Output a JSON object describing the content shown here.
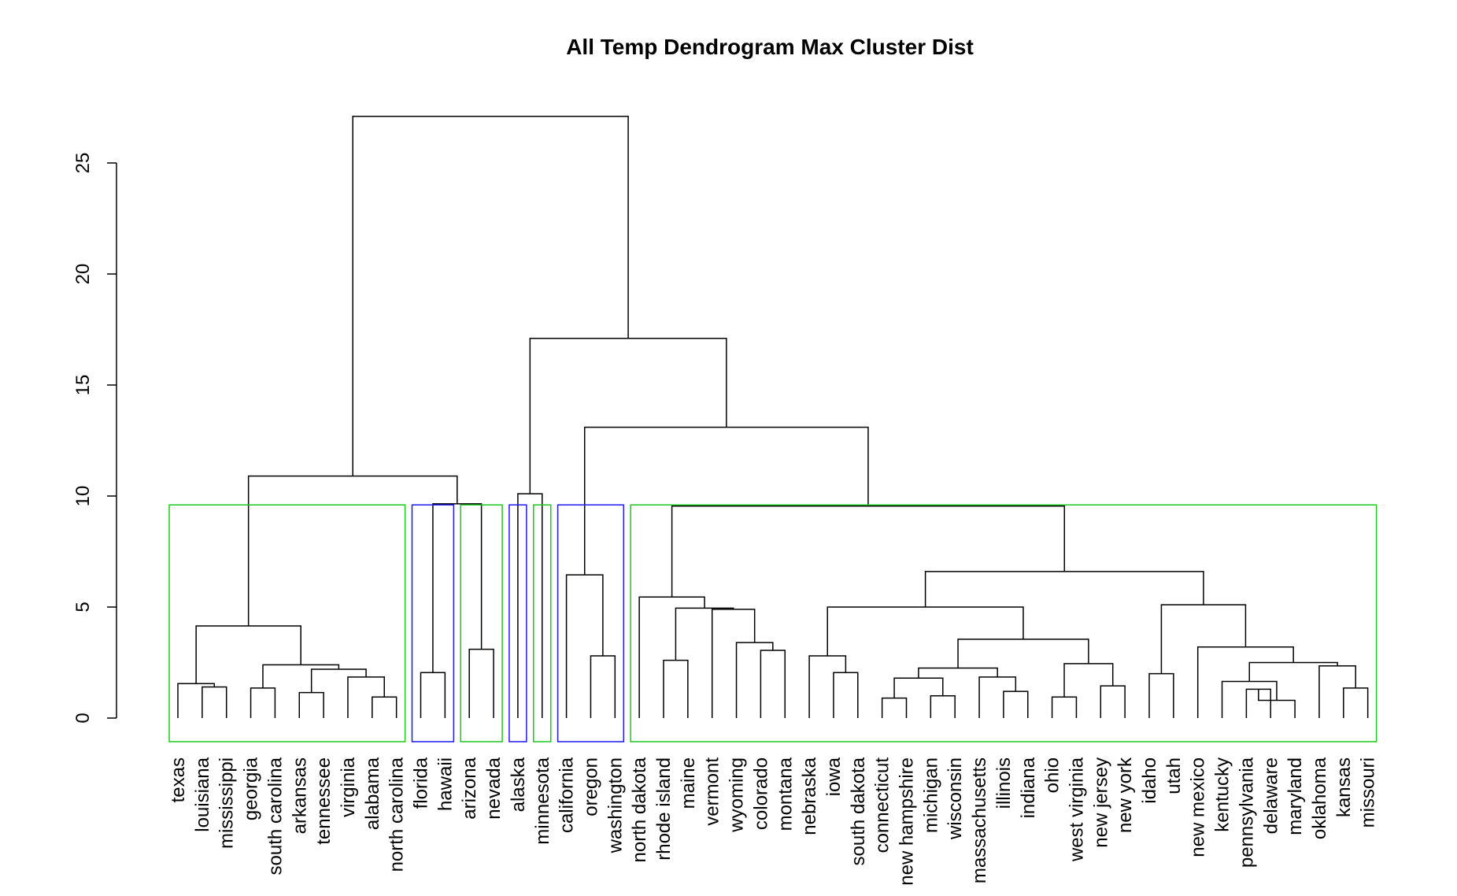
{
  "chart_data": {
    "type": "dendrogram",
    "title": "All Temp Dendrogram Max Cluster Dist",
    "xlabel": "",
    "ylabel": "",
    "ylim": [
      -1,
      27.2
    ],
    "y_ticks": [
      0,
      5,
      10,
      15,
      20,
      25
    ],
    "y_tick_labels": [
      "0",
      "5",
      "10",
      "15",
      "20",
      "25"
    ],
    "cut_height": 9.6,
    "leaves": [
      "texas",
      "louisiana",
      "mississippi",
      "georgia",
      "south carolina",
      "arkansas",
      "tennessee",
      "virginia",
      "alabama",
      "north carolina",
      "florida",
      "hawaii",
      "arizona",
      "nevada",
      "alaska",
      "minnesota",
      "california",
      "oregon",
      "washington",
      "north dakota",
      "rhode island",
      "maine",
      "vermont",
      "wyoming",
      "colorado",
      "montana",
      "nebraska",
      "iowa",
      "south dakota",
      "connecticut",
      "new hampshire",
      "michigan",
      "wisconsin",
      "massachusetts",
      "illinois",
      "indiana",
      "ohio",
      "west virginia",
      "new jersey",
      "new york",
      "idaho",
      "utah",
      "new mexico",
      "kentucky",
      "pennsylvania",
      "delaware",
      "maryland",
      "oklahoma",
      "kansas",
      "missouri"
    ],
    "merges": [
      {
        "left": "louisiana",
        "right": "mississippi",
        "height": 1.4
      },
      {
        "left": "texas",
        "right": "louisiana+mississippi",
        "height": 1.55
      },
      {
        "left": "georgia",
        "right": "south carolina",
        "height": 1.35
      },
      {
        "left": "arkansas",
        "right": "tennessee",
        "height": 1.15
      },
      {
        "left": "alabama",
        "right": "north carolina",
        "height": 0.95
      },
      {
        "left": "virginia",
        "right": "alabama+north carolina",
        "height": 1.85
      },
      {
        "left": "arkansas+tennessee",
        "right": "virginia+alabama+north carolina",
        "height": 2.2
      },
      {
        "left": "georgia+south carolina",
        "right": "arkansas..north carolina",
        "height": 2.4
      },
      {
        "left": "texas+louisiana+mississippi",
        "right": "georgia..north carolina",
        "height": 4.15
      },
      {
        "left": "florida",
        "right": "hawaii",
        "height": 2.05
      },
      {
        "left": "arizona",
        "right": "nevada",
        "height": 3.1
      },
      {
        "left": "florida+hawaii",
        "right": "arizona+nevada",
        "height": 9.65
      },
      {
        "left": "texas..north carolina",
        "right": "florida..nevada",
        "height": 10.9
      },
      {
        "left": "alaska",
        "right": "minnesota",
        "height": 10.1
      },
      {
        "left": "oregon",
        "right": "washington",
        "height": 2.8
      },
      {
        "left": "california",
        "right": "oregon+washington",
        "height": 6.45
      },
      {
        "left": "rhode island",
        "right": "maine",
        "height": 2.6
      },
      {
        "left": "colorado",
        "right": "montana",
        "height": 3.05
      },
      {
        "left": "wyoming",
        "right": "colorado+montana",
        "height": 3.4
      },
      {
        "left": "vermont",
        "right": "wyoming+colorado+montana",
        "height": 4.9
      },
      {
        "left": "rhode island+maine",
        "right": "vermont..montana",
        "height": 4.95
      },
      {
        "left": "north dakota",
        "right": "rhode island..montana",
        "height": 5.45
      },
      {
        "left": "iowa",
        "right": "south dakota",
        "height": 2.05
      },
      {
        "left": "nebraska",
        "right": "iowa+south dakota",
        "height": 2.8
      },
      {
        "left": "connecticut",
        "right": "new hampshire",
        "height": 0.9
      },
      {
        "left": "michigan",
        "right": "wisconsin",
        "height": 1.0
      },
      {
        "left": "connecticut+new hampshire",
        "right": "michigan+wisconsin",
        "height": 1.8
      },
      {
        "left": "illinois",
        "right": "indiana",
        "height": 1.2
      },
      {
        "left": "massachusetts",
        "right": "illinois+indiana",
        "height": 1.85
      },
      {
        "left": "connecticut..wisconsin",
        "right": "massachusetts..indiana",
        "height": 2.25
      },
      {
        "left": "ohio",
        "right": "west virginia",
        "height": 0.95
      },
      {
        "left": "new jersey",
        "right": "new york",
        "height": 1.45
      },
      {
        "left": "ohio+west virginia",
        "right": "new jersey+new york",
        "height": 2.45
      },
      {
        "left": "connecticut..indiana",
        "right": "ohio..new york",
        "height": 3.55
      },
      {
        "left": "nebraska+iowa+south dakota",
        "right": "connecticut..new york",
        "height": 5.0
      },
      {
        "left": "idaho",
        "right": "utah",
        "height": 2.0
      },
      {
        "left": "pennsylvania",
        "right": "delaware",
        "height": 1.3
      },
      {
        "left": "pennsylvania+delaware",
        "right": "maryland",
        "height": 0.8
      },
      {
        "left": "kentucky",
        "right": "pennsylvania+delaware+maryland",
        "height": 1.65
      },
      {
        "left": "kansas",
        "right": "missouri",
        "height": 1.35
      },
      {
        "left": "oklahoma",
        "right": "kansas+missouri",
        "height": 2.35
      },
      {
        "left": "kentucky..maryland",
        "right": "oklahoma+kansas+missouri",
        "height": 2.5
      },
      {
        "left": "new mexico",
        "right": "kentucky..missouri",
        "height": 3.2
      },
      {
        "left": "idaho+utah",
        "right": "new mexico..missouri",
        "height": 5.1
      },
      {
        "left": "nebraska..new york",
        "right": "idaho..missouri",
        "height": 6.6
      },
      {
        "left": "north dakota..montana",
        "right": "nebraska..missouri",
        "height": 9.55
      },
      {
        "left": "california+oregon+washington",
        "right": "north dakota..missouri",
        "height": 13.1
      },
      {
        "left": "alaska+minnesota",
        "right": "california..missouri",
        "height": 17.1
      },
      {
        "left": "texas..nevada",
        "right": "alaska..missouri",
        "height": 27.1
      }
    ],
    "clusters": [
      {
        "from": "texas",
        "to": "north carolina",
        "color": "#1ec81e"
      },
      {
        "from": "florida",
        "to": "hawaii",
        "color": "#1c1cf0"
      },
      {
        "from": "arizona",
        "to": "nevada",
        "color": "#1ec81e"
      },
      {
        "from": "alaska",
        "to": "alaska",
        "color": "#1c1cf0"
      },
      {
        "from": "minnesota",
        "to": "minnesota",
        "color": "#1ec81e"
      },
      {
        "from": "california",
        "to": "washington",
        "color": "#1c1cf0"
      },
      {
        "from": "north dakota",
        "to": "missouri",
        "color": "#1ec81e"
      }
    ]
  }
}
